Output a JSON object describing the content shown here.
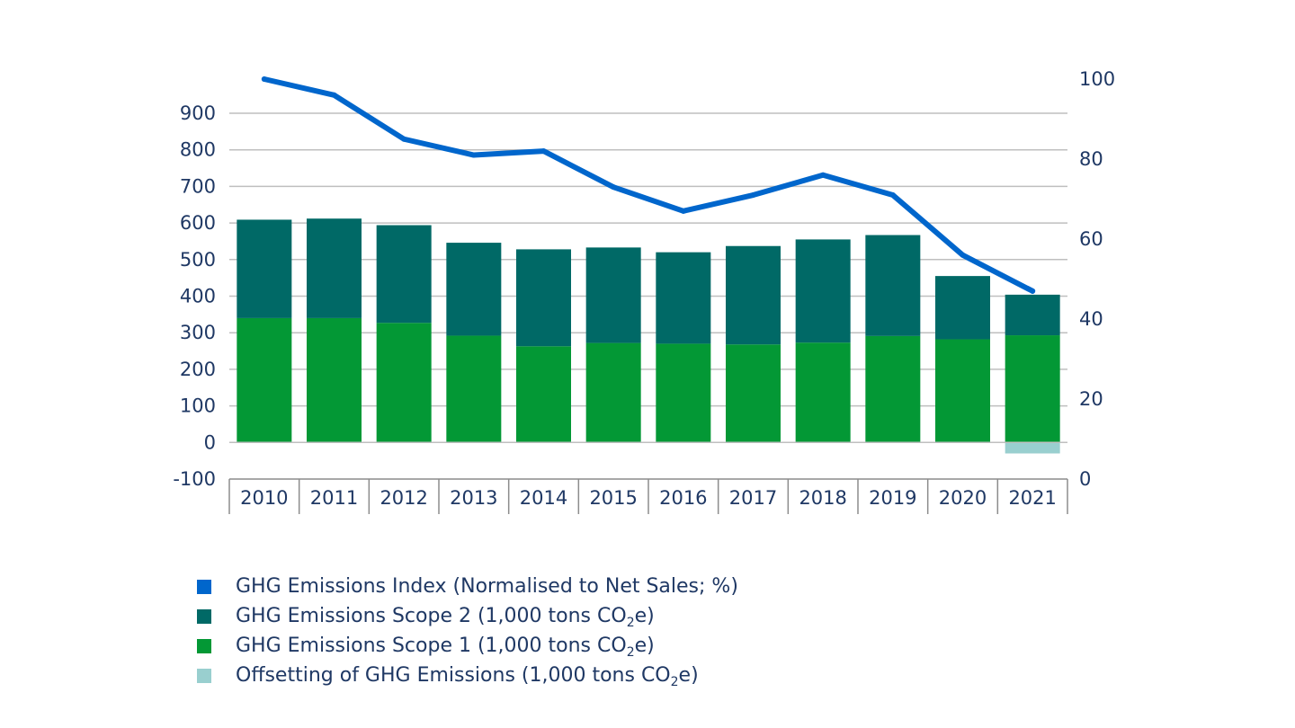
{
  "chart_data": {
    "type": "bar",
    "categories": [
      "2010",
      "2011",
      "2012",
      "2013",
      "2014",
      "2015",
      "2016",
      "2017",
      "2018",
      "2019",
      "2020",
      "2021"
    ],
    "series": [
      {
        "key": "scope1",
        "name": "GHG Emissions Scope 1 (1,000 tons CO2e)",
        "kind": "bar",
        "axis": "left",
        "color": "#039835",
        "values": [
          340,
          340,
          327,
          292,
          263,
          272,
          270,
          268,
          273,
          291,
          282,
          293
        ]
      },
      {
        "key": "scope2",
        "name": "GHG Emissions Scope 2 (1,000 tons CO2e)",
        "kind": "bar",
        "axis": "left",
        "color": "#006966",
        "values": [
          269,
          272,
          267,
          254,
          265,
          261,
          250,
          269,
          282,
          276,
          173,
          111
        ]
      },
      {
        "key": "offset",
        "name": "Offsetting of GHG Emissions (1,000 tons CO2e)",
        "kind": "bar",
        "axis": "left",
        "color": "#99cfcf",
        "values": [
          0,
          0,
          0,
          0,
          0,
          0,
          0,
          0,
          0,
          0,
          0,
          -30
        ]
      },
      {
        "key": "index",
        "name": "GHG Emissions Index (Normalised to Net Sales; %)",
        "kind": "line",
        "axis": "right",
        "color": "#0066cc",
        "values": [
          100,
          96,
          85,
          81,
          82,
          73,
          67,
          71,
          76,
          71,
          56,
          47
        ]
      }
    ],
    "y_left": {
      "min": -100,
      "max": 900,
      "ticks": [
        "-100",
        "0",
        "100",
        "200",
        "300",
        "400",
        "500",
        "600",
        "700",
        "800",
        "900"
      ]
    },
    "y_right": {
      "min": 0,
      "max": 100,
      "ticks": [
        "0",
        "20",
        "40",
        "60",
        "80",
        "100"
      ]
    },
    "grid": true,
    "legend_position": "bottom-left",
    "legend": [
      {
        "color": "#0066cc",
        "text": "GHG Emissions Index (Normalised to Net Sales; %)",
        "sub": "",
        "after": ""
      },
      {
        "color": "#006966",
        "text": "GHG Emissions Scope 2 (1,000 tons CO",
        "sub": "2",
        "after": "e)"
      },
      {
        "color": "#039835",
        "text": "GHG Emissions Scope 1 (1,000 tons CO",
        "sub": "2",
        "after": "e)"
      },
      {
        "color": "#99cfcf",
        "text": "Offsetting of GHG Emissions (1,000 tons CO",
        "sub": "2",
        "after": "e)"
      }
    ]
  }
}
